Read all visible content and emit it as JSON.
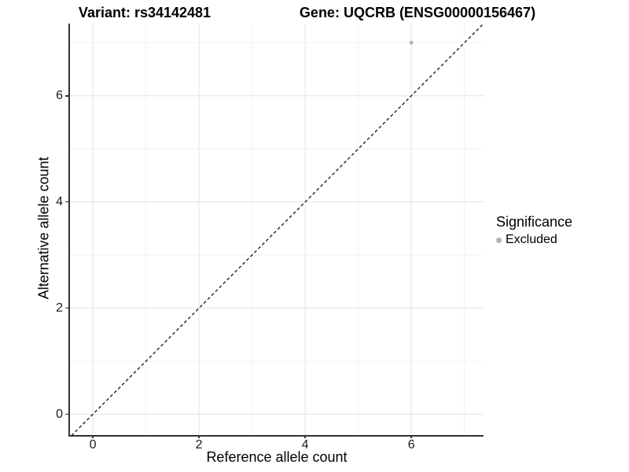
{
  "chart_data": {
    "type": "scatter",
    "titles": {
      "variant": "Variant: rs34142481",
      "gene": "Gene: UQCRB (ENSG00000156467)"
    },
    "xlabel": "Reference allele count",
    "ylabel": "Alternative allele count",
    "xlim": [
      -0.43,
      7.36
    ],
    "ylim": [
      -0.39,
      7.36
    ],
    "x_ticks": [
      0,
      2,
      4,
      6
    ],
    "y_ticks": [
      0,
      2,
      4,
      6
    ],
    "x_minor_ticks": [
      1,
      3,
      5,
      7
    ],
    "y_minor_ticks": [
      1,
      3,
      5,
      7
    ],
    "grid": {
      "show": true,
      "major_color": "#e4e4e4",
      "minor_color": "#f1f1f1"
    },
    "axis_line_color": "#333333",
    "identity_line": {
      "style": "dashed",
      "color": "#000000",
      "slope": 1,
      "intercept": 0
    },
    "series": [
      {
        "name": "Excluded",
        "color": "#b3b3b3",
        "point_radius": 2.5,
        "points": [
          {
            "x": 6,
            "y": 7
          }
        ]
      }
    ],
    "legend": {
      "title": "Significance",
      "position": "right",
      "items": [
        {
          "label": "Excluded",
          "color": "#b3b3b3"
        }
      ]
    }
  }
}
